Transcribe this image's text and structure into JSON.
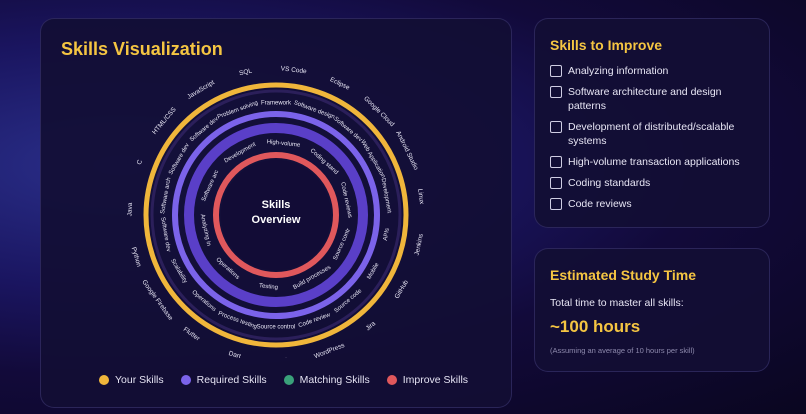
{
  "visualization": {
    "title": "Skills Visualization",
    "center_label_line1": "Skills",
    "center_label_line2": "Overview",
    "your_skills": [
      "SQL",
      "VS Code",
      "Eclipse",
      "Google Cloud",
      "Android Studio",
      "Linux",
      "Jenkins",
      "GitHub",
      "Jira",
      "WordPress",
      "Selenium",
      "Dart",
      "Flutter",
      "Google Firebase",
      "Python",
      "Java",
      "C",
      "HTML/CSS",
      "JavaScript"
    ],
    "required_skills": [
      "Problem solving",
      "Framework",
      "Software design",
      "Software dev",
      "Web Application",
      "Development",
      "APIs",
      "Mobile",
      "Source code",
      "Code review",
      "Source control",
      "Process testing",
      "Operations",
      "Scalability",
      "Software dev",
      "Software arch",
      "Software dev",
      "Software dev"
    ],
    "improve_skills": [
      "Development",
      "High-volume",
      "Coding stand",
      "Code reviews",
      "Source contr",
      "Build processes",
      "Testing",
      "Operations",
      "Analyzing in",
      "Software arc"
    ],
    "colors": {
      "your_skills": "#f0b63b",
      "required_skills": "#7b63ea",
      "matching_skills": "#3aa17a",
      "improve_skills": "#e0585c"
    },
    "legend": [
      {
        "label": "Your Skills",
        "color": "#f0b63b"
      },
      {
        "label": "Required Skills",
        "color": "#7b63ea"
      },
      {
        "label": "Matching Skills",
        "color": "#3aa17a"
      },
      {
        "label": "Improve Skills",
        "color": "#e0585c"
      }
    ]
  },
  "improve": {
    "title": "Skills to Improve",
    "items": [
      "Analyzing information",
      "Software architecture and design patterns",
      "Development of distributed/scalable systems",
      "High-volume transaction applications",
      "Coding standards",
      "Code reviews"
    ]
  },
  "study": {
    "title": "Estimated Study Time",
    "subtitle": "Total time to master all skills:",
    "hours": "~100 hours",
    "note": "(Assuming an average of 10 hours per skill)"
  }
}
